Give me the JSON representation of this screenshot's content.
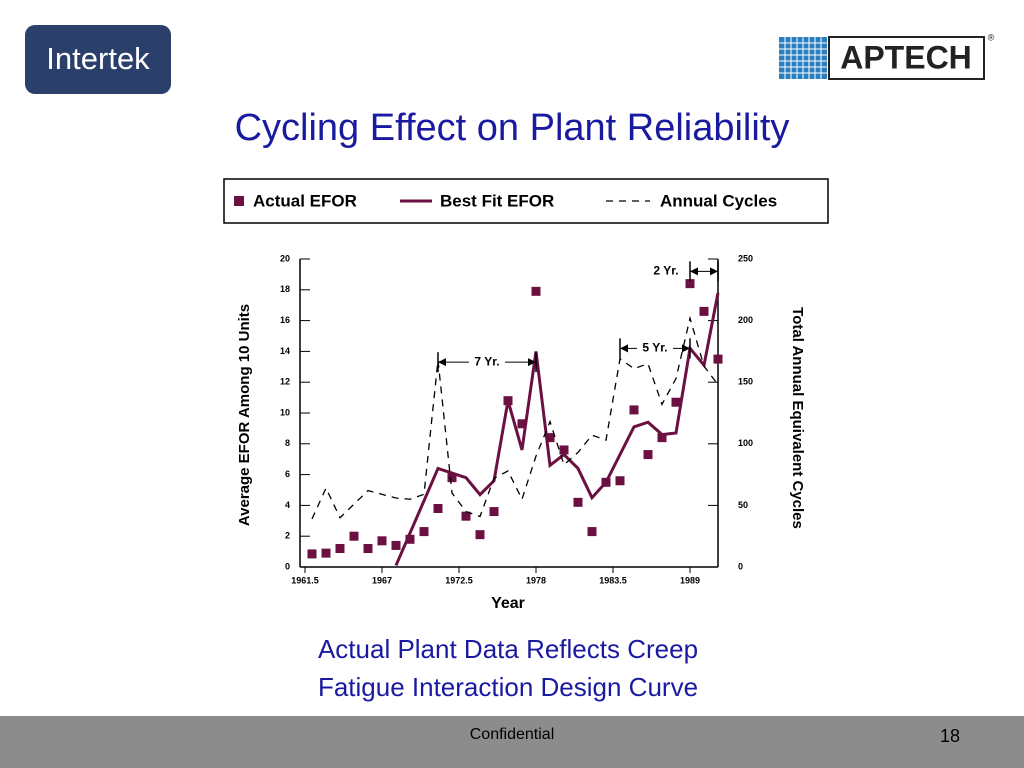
{
  "logos": {
    "left": "Intertek",
    "right": "APTECH",
    "right_mark": "®"
  },
  "title": "Cycling Effect on Plant Reliability",
  "chart_data": {
    "type": "line",
    "xlabel": "Year",
    "ylabel": "Average EFOR Among 10 Units",
    "y2label": "Total Annual Equivalent Cycles",
    "xlim": [
      1961.5,
      1991
    ],
    "xticks": [
      1961.5,
      1967,
      1972.5,
      1978,
      1983.5,
      1989
    ],
    "ylim": [
      0,
      20
    ],
    "yticks": [
      0,
      2,
      4,
      6,
      8,
      10,
      12,
      14,
      16,
      18,
      20
    ],
    "y2lim": [
      0,
      250
    ],
    "y2ticks": [
      0,
      50,
      100,
      150,
      200,
      250
    ],
    "series": [
      {
        "name": "Actual EFOR",
        "color": "#6b1040",
        "marker": "square",
        "x": [
          1962,
          1963,
          1964,
          1965,
          1966,
          1967,
          1968,
          1969,
          1970,
          1971,
          1972,
          1973,
          1974,
          1975,
          1976,
          1977,
          1978,
          1979,
          1980,
          1981,
          1982,
          1983,
          1984,
          1985,
          1986,
          1987,
          1988,
          1989,
          1990,
          1991
        ],
        "values": [
          0.85,
          0.9,
          1.2,
          2.0,
          1.2,
          1.7,
          1.4,
          1.8,
          2.3,
          3.8,
          5.8,
          3.3,
          2.1,
          3.6,
          10.8,
          9.3,
          17.9,
          8.4,
          7.6,
          4.2,
          2.3,
          5.5,
          5.6,
          10.2,
          7.3,
          8.4,
          10.7,
          18.4,
          16.6,
          13.5
        ]
      },
      {
        "name": "Best Fit EFOR",
        "color": "#6b1040",
        "marker": "none",
        "x": [
          1968,
          1971,
          1973,
          1974,
          1975,
          1976,
          1977,
          1978,
          1979,
          1980,
          1981,
          1982,
          1983,
          1985,
          1986,
          1987,
          1988,
          1989,
          1990,
          1991
        ],
        "values": [
          0.1,
          6.4,
          5.8,
          4.7,
          5.6,
          10.8,
          7.6,
          14.0,
          6.6,
          7.3,
          6.4,
          4.5,
          5.5,
          9.1,
          9.4,
          8.6,
          8.7,
          14.2,
          13.1,
          17.8
        ]
      },
      {
        "name": "Annual Cycles",
        "color": "#000000",
        "marker": "none",
        "dash": true,
        "axis": "y2",
        "x": [
          1962,
          1963,
          1964,
          1966,
          1968,
          1969,
          1970,
          1971,
          1972,
          1973,
          1974,
          1975,
          1976,
          1977,
          1978,
          1979,
          1980,
          1981,
          1982,
          1983,
          1984,
          1985,
          1986,
          1987,
          1988,
          1989,
          1990,
          1991
        ],
        "values": [
          39,
          64,
          40,
          62,
          56,
          55,
          59,
          168,
          60,
          45,
          41,
          72,
          78,
          55,
          90,
          118,
          83,
          93,
          107,
          103,
          169,
          161,
          165,
          132,
          153,
          202,
          163,
          148
        ]
      }
    ],
    "annotations": [
      {
        "label": "7 Yr.",
        "x0": 1971,
        "x1": 1978,
        "y": 13.3,
        "label_side": "center"
      },
      {
        "label": "5 Yr.",
        "x0": 1984,
        "x1": 1989,
        "y": 14.2,
        "label_side": "center"
      },
      {
        "label": "2 Yr.",
        "x0": 1989,
        "x1": 1991,
        "y": 19.2,
        "label_side": "left"
      }
    ]
  },
  "caption": [
    "Actual Plant Data Reflects Creep",
    "Fatigue Interaction Design Curve"
  ],
  "footer": {
    "text": "Confidential",
    "page": 18
  }
}
